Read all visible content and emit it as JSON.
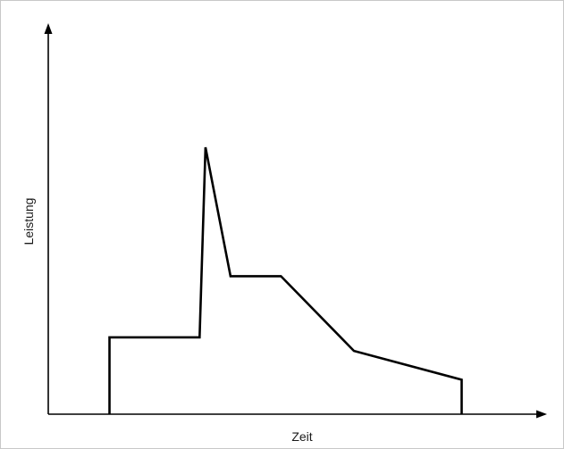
{
  "chart_data": {
    "type": "line",
    "title": "",
    "xlabel": "Zeit",
    "ylabel": "Leistung",
    "xlim": [
      0,
      100
    ],
    "ylim": [
      0,
      100
    ],
    "ticks": "none",
    "grid": false,
    "legend": "none",
    "colors": {
      "line": "#000000",
      "axis": "#000000"
    },
    "series": [
      {
        "x": [
          12.5,
          12.5,
          30.9,
          32.1,
          37.2,
          47.5,
          62.4,
          84.4,
          84.4
        ],
        "y": [
          0,
          28.8,
          28.8,
          100,
          51.7,
          51.7,
          23.7,
          12.9,
          0
        ]
      }
    ]
  }
}
